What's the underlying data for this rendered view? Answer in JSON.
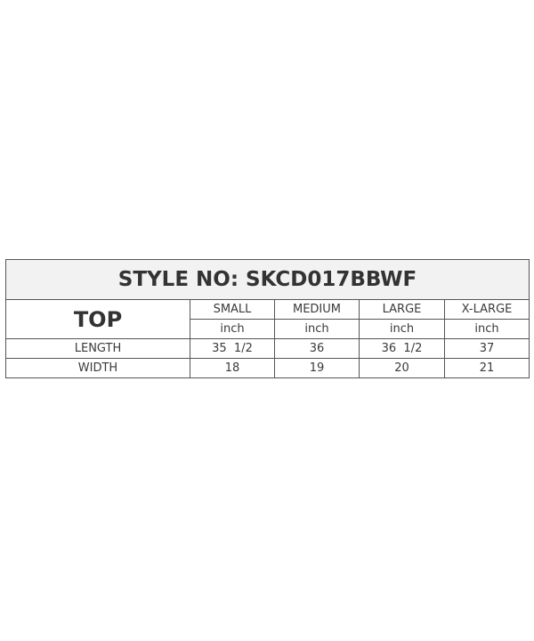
{
  "title": "STYLE NO: SKCD017BBWF",
  "category": "TOP",
  "sizes": [
    "SMALL",
    "MEDIUM",
    "LARGE",
    "X-LARGE"
  ],
  "units": [
    "inch",
    "inch",
    "inch",
    "inch"
  ],
  "rows": [
    {
      "label": "LENGTH",
      "values": [
        "35  1/2",
        "36",
        "36  1/2",
        "37"
      ]
    },
    {
      "label": "WIDTH",
      "values": [
        "18",
        "19",
        "20",
        "21"
      ]
    }
  ]
}
